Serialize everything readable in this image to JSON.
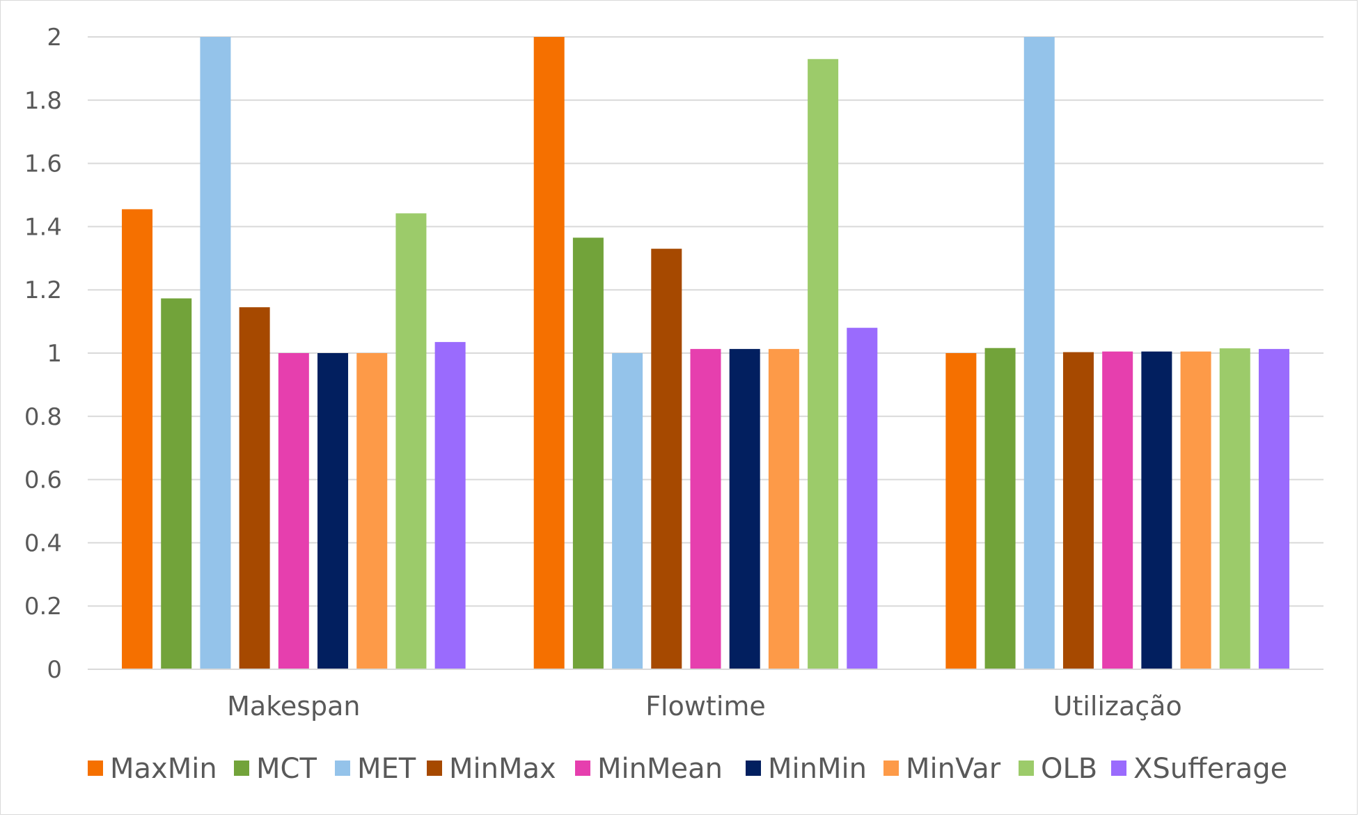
{
  "chart_data": {
    "type": "bar",
    "categories": [
      "Makespan",
      "Flowtime",
      "Utilização"
    ],
    "series": [
      {
        "name": "MaxMin",
        "color": "#f57000",
        "values": [
          1.455,
          2.0,
          1.0
        ]
      },
      {
        "name": "MCT",
        "color": "#72a33a",
        "values": [
          1.173,
          1.365,
          1.016
        ]
      },
      {
        "name": "MET",
        "color": "#94c3ea",
        "values": [
          2.0,
          1.0,
          2.0
        ]
      },
      {
        "name": "MinMax",
        "color": "#a64900",
        "values": [
          1.145,
          1.33,
          1.003
        ]
      },
      {
        "name": "MinMean",
        "color": "#e63fae",
        "values": [
          1.0,
          1.013,
          1.005
        ]
      },
      {
        "name": "MinMin",
        "color": "#021f5f",
        "values": [
          1.0,
          1.013,
          1.005
        ]
      },
      {
        "name": "MinVar",
        "color": "#fd9a48",
        "values": [
          1.0,
          1.013,
          1.005
        ]
      },
      {
        "name": "OLB",
        "color": "#9ccb6a",
        "values": [
          1.442,
          1.93,
          1.015
        ]
      },
      {
        "name": "XSufferage",
        "color": "#9a6bfd",
        "values": [
          1.035,
          1.08,
          1.013
        ]
      }
    ],
    "yticks": [
      "0",
      "0.2",
      "0.4",
      "0.6",
      "0.8",
      "1",
      "1.2",
      "1.4",
      "1.6",
      "1.8",
      "2"
    ],
    "ylim": [
      0,
      2
    ],
    "grid": true,
    "legend_position": "bottom"
  }
}
